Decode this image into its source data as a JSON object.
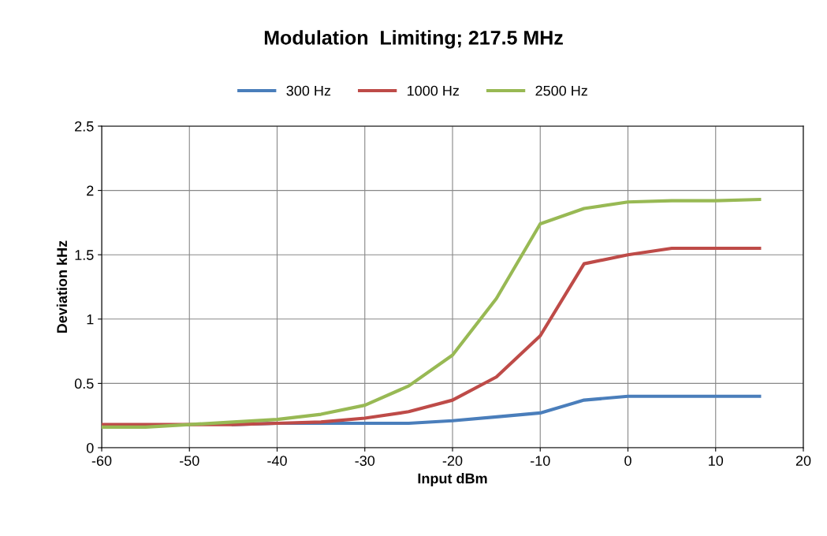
{
  "chart_data": {
    "type": "line",
    "title": "Modulation  Limiting; 217.5 MHz",
    "xlabel": "Input dBm",
    "ylabel": "Deviation kHz",
    "x": [
      -60,
      -55,
      -50,
      -45,
      -40,
      -35,
      -30,
      -25,
      -20,
      -15,
      -10,
      -5,
      0,
      5,
      10,
      15
    ],
    "series": [
      {
        "name": "300 Hz",
        "color": "#4a7ebb",
        "values": [
          null,
          null,
          null,
          0.18,
          0.19,
          0.19,
          0.19,
          0.19,
          0.21,
          0.24,
          0.27,
          0.37,
          0.4,
          0.4,
          0.4,
          0.4
        ]
      },
      {
        "name": "1000 Hz",
        "color": "#be4b48",
        "values": [
          0.18,
          0.18,
          0.18,
          0.18,
          0.19,
          0.2,
          0.23,
          0.28,
          0.37,
          0.55,
          0.87,
          1.43,
          1.5,
          1.55,
          1.55,
          1.55
        ]
      },
      {
        "name": "2500 Hz",
        "color": "#98b954",
        "values": [
          0.16,
          0.16,
          0.18,
          0.2,
          0.22,
          0.26,
          0.33,
          0.48,
          0.72,
          1.16,
          1.74,
          1.86,
          1.91,
          1.92,
          1.92,
          1.93
        ]
      }
    ],
    "xlim": [
      -60,
      20
    ],
    "xticks": [
      -60,
      -50,
      -40,
      -30,
      -20,
      -10,
      0,
      10,
      20
    ],
    "ylim": [
      0,
      2.5
    ],
    "yticks": [
      0,
      {
        "value": 0.5,
        "label": "0.5"
      },
      1,
      {
        "value": 1.5,
        "label": "1.5"
      },
      2,
      {
        "value": 2.5,
        "label": "2.5"
      }
    ],
    "grid": true,
    "legend": "top",
    "marker": "none",
    "line_style": "solid"
  }
}
